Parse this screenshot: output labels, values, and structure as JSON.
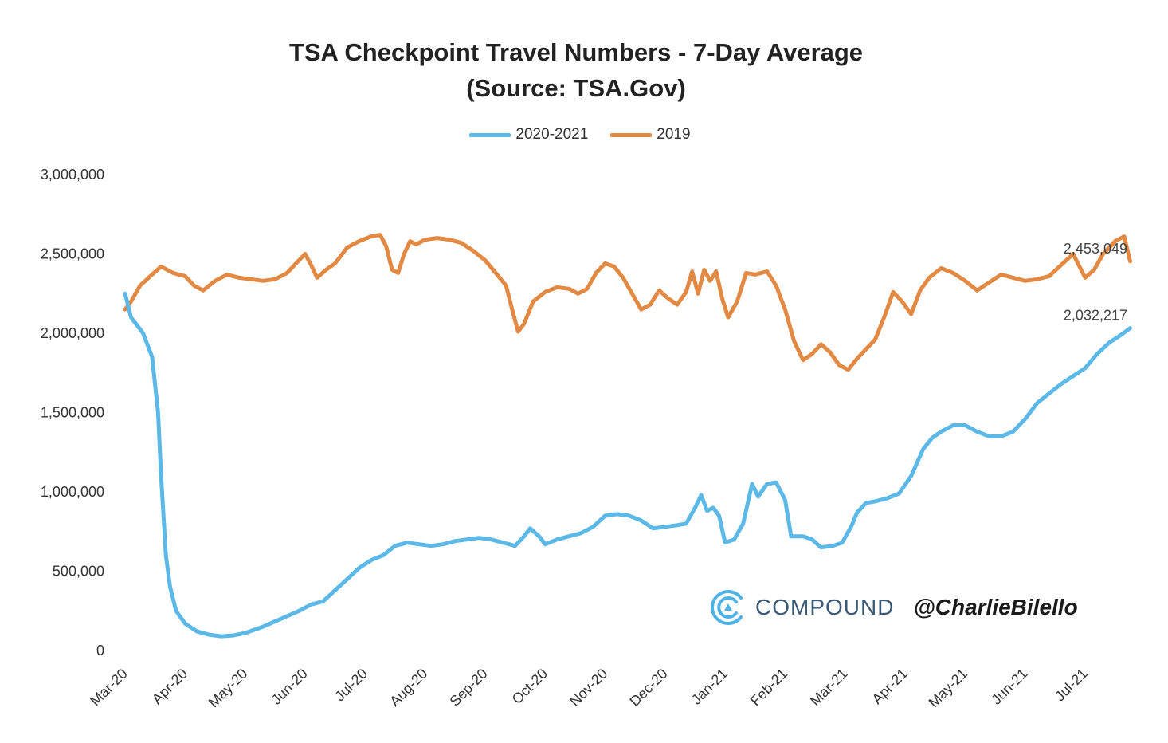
{
  "chart_data": {
    "type": "line",
    "title": "TSA Checkpoint Travel Numbers - 7-Day Average",
    "subtitle": "(Source: TSA.Gov)",
    "xlabel": "",
    "ylabel": "",
    "ylim": [
      0,
      3000000
    ],
    "yticks": [
      "0",
      "500,000",
      "1,000,000",
      "1,500,000",
      "2,000,000",
      "2,500,000",
      "3,000,000"
    ],
    "categories": [
      "Mar-20",
      "Apr-20",
      "May-20",
      "Jun-20",
      "Jul-20",
      "Aug-20",
      "Sep-20",
      "Oct-20",
      "Nov-20",
      "Dec-20",
      "Jan-21",
      "Feb-21",
      "Mar-21",
      "Apr-21",
      "May-21",
      "Jun-21",
      "Jul-21"
    ],
    "legend_position": "top-center",
    "grid": false,
    "series": [
      {
        "name": "2020-2021",
        "color": "#5cb8e6",
        "end_label": "2,032,217",
        "points": [
          [
            0,
            2250000
          ],
          [
            0.1,
            2100000
          ],
          [
            0.3,
            2000000
          ],
          [
            0.45,
            1850000
          ],
          [
            0.55,
            1500000
          ],
          [
            0.6,
            1100000
          ],
          [
            0.68,
            600000
          ],
          [
            0.75,
            400000
          ],
          [
            0.85,
            250000
          ],
          [
            1.0,
            170000
          ],
          [
            1.2,
            120000
          ],
          [
            1.4,
            100000
          ],
          [
            1.6,
            90000
          ],
          [
            1.8,
            95000
          ],
          [
            2.0,
            110000
          ],
          [
            2.3,
            150000
          ],
          [
            2.6,
            200000
          ],
          [
            2.9,
            250000
          ],
          [
            3.1,
            290000
          ],
          [
            3.3,
            310000
          ],
          [
            3.5,
            380000
          ],
          [
            3.7,
            450000
          ],
          [
            3.9,
            520000
          ],
          [
            4.1,
            570000
          ],
          [
            4.3,
            600000
          ],
          [
            4.5,
            660000
          ],
          [
            4.7,
            680000
          ],
          [
            4.9,
            670000
          ],
          [
            5.1,
            660000
          ],
          [
            5.3,
            670000
          ],
          [
            5.5,
            690000
          ],
          [
            5.7,
            700000
          ],
          [
            5.9,
            710000
          ],
          [
            6.1,
            700000
          ],
          [
            6.3,
            680000
          ],
          [
            6.5,
            660000
          ],
          [
            6.65,
            720000
          ],
          [
            6.75,
            770000
          ],
          [
            6.9,
            720000
          ],
          [
            7.0,
            670000
          ],
          [
            7.2,
            700000
          ],
          [
            7.4,
            720000
          ],
          [
            7.6,
            740000
          ],
          [
            7.8,
            780000
          ],
          [
            8.0,
            850000
          ],
          [
            8.2,
            860000
          ],
          [
            8.4,
            850000
          ],
          [
            8.6,
            820000
          ],
          [
            8.8,
            770000
          ],
          [
            9.0,
            780000
          ],
          [
            9.2,
            790000
          ],
          [
            9.35,
            800000
          ],
          [
            9.5,
            900000
          ],
          [
            9.6,
            980000
          ],
          [
            9.7,
            880000
          ],
          [
            9.8,
            900000
          ],
          [
            9.9,
            850000
          ],
          [
            10.0,
            680000
          ],
          [
            10.15,
            700000
          ],
          [
            10.3,
            800000
          ],
          [
            10.45,
            1050000
          ],
          [
            10.55,
            970000
          ],
          [
            10.7,
            1050000
          ],
          [
            10.85,
            1060000
          ],
          [
            11.0,
            950000
          ],
          [
            11.1,
            720000
          ],
          [
            11.3,
            720000
          ],
          [
            11.45,
            700000
          ],
          [
            11.6,
            650000
          ],
          [
            11.8,
            660000
          ],
          [
            11.95,
            680000
          ],
          [
            12.1,
            780000
          ],
          [
            12.2,
            870000
          ],
          [
            12.35,
            930000
          ],
          [
            12.5,
            940000
          ],
          [
            12.7,
            960000
          ],
          [
            12.9,
            990000
          ],
          [
            13.1,
            1100000
          ],
          [
            13.3,
            1270000
          ],
          [
            13.45,
            1340000
          ],
          [
            13.6,
            1380000
          ],
          [
            13.8,
            1420000
          ],
          [
            14.0,
            1420000
          ],
          [
            14.2,
            1380000
          ],
          [
            14.4,
            1350000
          ],
          [
            14.6,
            1350000
          ],
          [
            14.8,
            1380000
          ],
          [
            15.0,
            1460000
          ],
          [
            15.2,
            1560000
          ],
          [
            15.4,
            1620000
          ],
          [
            15.6,
            1680000
          ],
          [
            15.8,
            1730000
          ],
          [
            16.0,
            1780000
          ],
          [
            16.2,
            1870000
          ],
          [
            16.4,
            1940000
          ],
          [
            16.6,
            1990000
          ],
          [
            16.75,
            2032217
          ]
        ]
      },
      {
        "name": "2019",
        "color": "#e28a43",
        "end_label": "2,453,049",
        "points": [
          [
            0,
            2150000
          ],
          [
            0.1,
            2200000
          ],
          [
            0.25,
            2300000
          ],
          [
            0.45,
            2370000
          ],
          [
            0.6,
            2420000
          ],
          [
            0.8,
            2380000
          ],
          [
            1.0,
            2360000
          ],
          [
            1.15,
            2300000
          ],
          [
            1.3,
            2270000
          ],
          [
            1.5,
            2330000
          ],
          [
            1.7,
            2370000
          ],
          [
            1.9,
            2350000
          ],
          [
            2.1,
            2340000
          ],
          [
            2.3,
            2330000
          ],
          [
            2.5,
            2340000
          ],
          [
            2.7,
            2380000
          ],
          [
            2.85,
            2440000
          ],
          [
            3.0,
            2500000
          ],
          [
            3.1,
            2430000
          ],
          [
            3.2,
            2350000
          ],
          [
            3.35,
            2400000
          ],
          [
            3.5,
            2440000
          ],
          [
            3.7,
            2540000
          ],
          [
            3.9,
            2580000
          ],
          [
            4.1,
            2610000
          ],
          [
            4.25,
            2620000
          ],
          [
            4.35,
            2550000
          ],
          [
            4.45,
            2400000
          ],
          [
            4.55,
            2380000
          ],
          [
            4.65,
            2500000
          ],
          [
            4.75,
            2580000
          ],
          [
            4.85,
            2560000
          ],
          [
            5.0,
            2590000
          ],
          [
            5.2,
            2600000
          ],
          [
            5.4,
            2590000
          ],
          [
            5.6,
            2570000
          ],
          [
            5.8,
            2520000
          ],
          [
            6.0,
            2460000
          ],
          [
            6.2,
            2370000
          ],
          [
            6.35,
            2300000
          ],
          [
            6.45,
            2150000
          ],
          [
            6.55,
            2010000
          ],
          [
            6.65,
            2060000
          ],
          [
            6.8,
            2200000
          ],
          [
            7.0,
            2260000
          ],
          [
            7.2,
            2290000
          ],
          [
            7.4,
            2280000
          ],
          [
            7.55,
            2250000
          ],
          [
            7.7,
            2280000
          ],
          [
            7.85,
            2380000
          ],
          [
            8.0,
            2440000
          ],
          [
            8.15,
            2420000
          ],
          [
            8.3,
            2350000
          ],
          [
            8.45,
            2250000
          ],
          [
            8.6,
            2150000
          ],
          [
            8.75,
            2180000
          ],
          [
            8.9,
            2270000
          ],
          [
            9.05,
            2220000
          ],
          [
            9.2,
            2180000
          ],
          [
            9.35,
            2260000
          ],
          [
            9.45,
            2390000
          ],
          [
            9.55,
            2250000
          ],
          [
            9.65,
            2400000
          ],
          [
            9.75,
            2330000
          ],
          [
            9.85,
            2390000
          ],
          [
            9.95,
            2220000
          ],
          [
            10.05,
            2100000
          ],
          [
            10.2,
            2200000
          ],
          [
            10.35,
            2380000
          ],
          [
            10.5,
            2370000
          ],
          [
            10.7,
            2390000
          ],
          [
            10.85,
            2300000
          ],
          [
            11.0,
            2150000
          ],
          [
            11.15,
            1950000
          ],
          [
            11.3,
            1830000
          ],
          [
            11.45,
            1870000
          ],
          [
            11.6,
            1930000
          ],
          [
            11.75,
            1880000
          ],
          [
            11.9,
            1800000
          ],
          [
            12.05,
            1770000
          ],
          [
            12.2,
            1840000
          ],
          [
            12.35,
            1900000
          ],
          [
            12.5,
            1960000
          ],
          [
            12.65,
            2100000
          ],
          [
            12.8,
            2260000
          ],
          [
            12.95,
            2200000
          ],
          [
            13.1,
            2120000
          ],
          [
            13.25,
            2270000
          ],
          [
            13.4,
            2350000
          ],
          [
            13.6,
            2410000
          ],
          [
            13.8,
            2380000
          ],
          [
            14.0,
            2330000
          ],
          [
            14.2,
            2270000
          ],
          [
            14.4,
            2320000
          ],
          [
            14.6,
            2370000
          ],
          [
            14.8,
            2350000
          ],
          [
            15.0,
            2330000
          ],
          [
            15.2,
            2340000
          ],
          [
            15.4,
            2360000
          ],
          [
            15.6,
            2430000
          ],
          [
            15.8,
            2500000
          ],
          [
            16.0,
            2350000
          ],
          [
            16.15,
            2400000
          ],
          [
            16.3,
            2500000
          ],
          [
            16.5,
            2580000
          ],
          [
            16.65,
            2610000
          ],
          [
            16.75,
            2453049
          ]
        ]
      }
    ]
  },
  "branding": {
    "company": "COMPOUND",
    "handle": "@CharlieBilello"
  }
}
